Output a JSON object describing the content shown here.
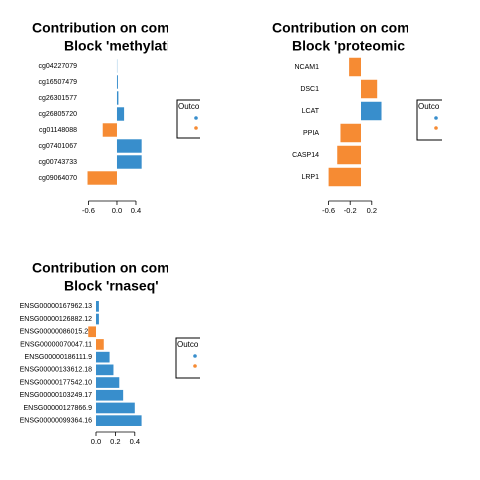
{
  "chart_data": [
    {
      "type": "bar",
      "orientation": "horizontal",
      "title": "Contribution on com",
      "subtitle": "Block 'methylatio",
      "categories": [
        "cg04227079",
        "cg16507479",
        "cg26301577",
        "cg26805720",
        "cg01148088",
        "cg07401067",
        "cg00743733",
        "cg09064070"
      ],
      "values": [
        0.005,
        0.02,
        0.03,
        0.15,
        -0.3,
        0.52,
        0.52,
        -0.62
      ],
      "colors": [
        "#388ECC",
        "#388ECC",
        "#388ECC",
        "#388ECC",
        "#F68B33",
        "#388ECC",
        "#388ECC",
        "#F68B33"
      ],
      "xlim": [
        -0.65,
        0.55
      ],
      "xticks": [
        -0.6,
        {
          "value": 0,
          "label": "0.0"
        },
        0.4
      ],
      "legend_title": "Outco",
      "legend_colors": [
        "#388ECC",
        "#F68B33"
      ]
    },
    {
      "type": "bar",
      "orientation": "horizontal",
      "title": "Contribution on com",
      "subtitle": "Block 'proteomic",
      "categories": [
        "NCAM1",
        "DSC1",
        "LCAT",
        "PPIA",
        "CASP14",
        "LRP1"
      ],
      "values": [
        -0.22,
        0.3,
        0.38,
        -0.38,
        -0.44,
        -0.6
      ],
      "colors": [
        "#F68B33",
        "#F68B33",
        "#388ECC",
        "#F68B33",
        "#F68B33",
        "#F68B33"
      ],
      "xlim": [
        -0.65,
        0.45
      ],
      "xticks": [
        -0.6,
        -0.2,
        0.2
      ],
      "legend_title": "Outco",
      "legend_colors": [
        "#388ECC",
        "#F68B33"
      ]
    },
    {
      "type": "bar",
      "orientation": "horizontal",
      "title": "Contribution on com",
      "subtitle": "Block 'rnaseq'",
      "categories": [
        "ENSG00000167962.13",
        "ENSG00000126882.12",
        "ENSG00000086015.20",
        "ENSG00000070047.11",
        "ENSG00000186111.9",
        "ENSG00000133612.18",
        "ENSG00000177542.10",
        "ENSG00000103249.17",
        "ENSG00000127866.9",
        "ENSG00000099364.16"
      ],
      "values": [
        0.03,
        0.03,
        -0.08,
        0.08,
        0.14,
        0.18,
        0.24,
        0.28,
        0.4,
        0.47
      ],
      "colors": [
        "#388ECC",
        "#388ECC",
        "#F68B33",
        "#F68B33",
        "#388ECC",
        "#388ECC",
        "#388ECC",
        "#388ECC",
        "#388ECC",
        "#388ECC"
      ],
      "xlim": [
        -0.1,
        0.5
      ],
      "xticks": [
        {
          "value": 0,
          "label": "0.0"
        },
        0.2,
        0.4
      ],
      "legend_title": "Outco",
      "legend_colors": [
        "#388ECC",
        "#F68B33"
      ]
    }
  ]
}
